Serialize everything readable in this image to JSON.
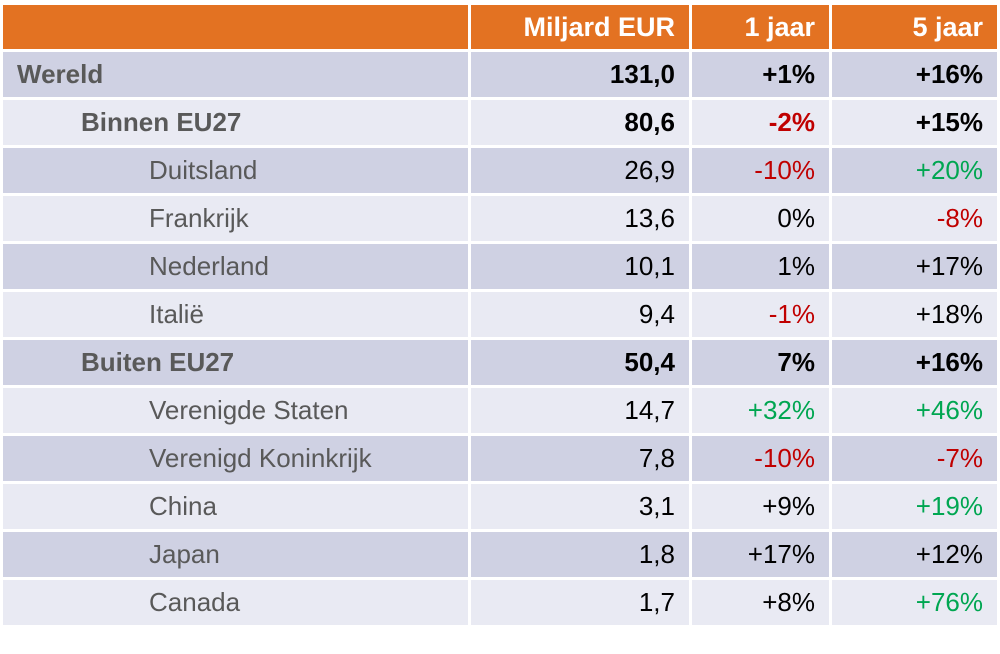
{
  "headers": [
    "",
    "Miljard EUR",
    "1 jaar",
    "5 jaar"
  ],
  "colors": {
    "header_bg": "#e37222",
    "row_dark": "#cfd1e3",
    "row_light": "#e9eaf3",
    "negative": "#c00000",
    "positive": "#00a651"
  },
  "rows": [
    {
      "label": "Wereld",
      "level": 0,
      "value": "131,0",
      "y1": "+1%",
      "y1_color": "black",
      "y5": "+16%",
      "y5_color": "black"
    },
    {
      "label": "Binnen EU27",
      "level": 1,
      "value": "80,6",
      "y1": "-2%",
      "y1_color": "red",
      "y5": "+15%",
      "y5_color": "black"
    },
    {
      "label": "Duitsland",
      "level": 2,
      "value": "26,9",
      "y1": "-10%",
      "y1_color": "red",
      "y5": "+20%",
      "y5_color": "green"
    },
    {
      "label": "Frankrijk",
      "level": 2,
      "value": "13,6",
      "y1": "0%",
      "y1_color": "black",
      "y5": "-8%",
      "y5_color": "red"
    },
    {
      "label": "Nederland",
      "level": 2,
      "value": "10,1",
      "y1": "1%",
      "y1_color": "black",
      "y5": "+17%",
      "y5_color": "black"
    },
    {
      "label": "Italië",
      "level": 2,
      "value": "9,4",
      "y1": "-1%",
      "y1_color": "red",
      "y5": "+18%",
      "y5_color": "black"
    },
    {
      "label": "Buiten EU27",
      "level": 1,
      "value": "50,4",
      "y1": "7%",
      "y1_color": "black",
      "y5": "+16%",
      "y5_color": "black"
    },
    {
      "label": "Verenigde Staten",
      "level": 2,
      "value": "14,7",
      "y1": "+32%",
      "y1_color": "green",
      "y5": "+46%",
      "y5_color": "green"
    },
    {
      "label": "Verenigd Koninkrijk",
      "level": 2,
      "value": "7,8",
      "y1": "-10%",
      "y1_color": "red",
      "y5": "-7%",
      "y5_color": "red"
    },
    {
      "label": "China",
      "level": 2,
      "value": "3,1",
      "y1": "+9%",
      "y1_color": "black",
      "y5": "+19%",
      "y5_color": "green"
    },
    {
      "label": "Japan",
      "level": 2,
      "value": "1,8",
      "y1": "+17%",
      "y1_color": "black",
      "y5": "+12%",
      "y5_color": "black"
    },
    {
      "label": "Canada",
      "level": 2,
      "value": "1,7",
      "y1": "+8%",
      "y1_color": "black",
      "y5": "+76%",
      "y5_color": "green"
    }
  ]
}
